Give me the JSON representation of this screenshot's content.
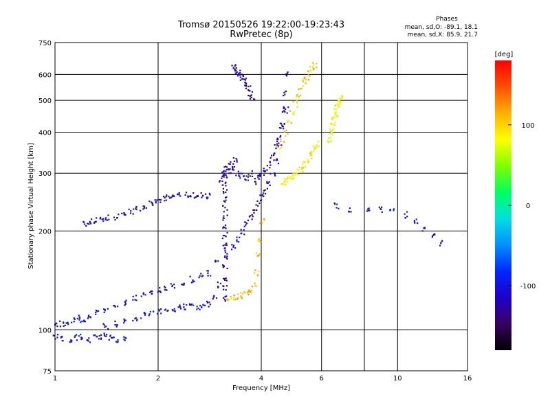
{
  "chart_data": {
    "type": "scatter",
    "title": "Tromsø 20150526 19:22:00-19:23:43",
    "subtitle": "RwPretec (8p)",
    "xlabel": "Frequency [MHz]",
    "ylabel": "Stationary phase Virtual Height [km]",
    "x_scale": "log",
    "y_scale": "log",
    "xlim": [
      1,
      16
    ],
    "ylim": [
      75,
      750
    ],
    "x_ticks": [
      "1",
      "2",
      "4",
      "6",
      "10",
      "16"
    ],
    "y_ticks": [
      "750",
      "600",
      "500",
      "400",
      "300",
      "200",
      "100",
      "75"
    ],
    "x_grid": [
      1,
      2,
      4,
      6,
      8,
      10,
      16
    ],
    "y_grid": [
      75,
      100,
      200,
      300,
      400,
      500,
      600,
      750
    ],
    "grid": true,
    "legend": {
      "position": "top-right",
      "title": "Phases",
      "lines": [
        "mean, sd,O: -89.1, 18.1",
        "mean, sd,X: 85.9, 21.7"
      ]
    },
    "colorbar": {
      "label": "[deg]",
      "range": [
        -180,
        180
      ],
      "ticks": [
        {
          "value": 100,
          "label": "100"
        },
        {
          "value": 0,
          "label": "0"
        },
        {
          "value": -100,
          "label": "-100"
        }
      ],
      "colors": [
        "#000000",
        "#3a0060",
        "#1e00c8",
        "#0028ff",
        "#0090ff",
        "#00e0e0",
        "#00ff60",
        "#80ff00",
        "#ffff00",
        "#ffb000",
        "#ff5000",
        "#ff0000"
      ]
    },
    "series": [
      {
        "x": [
          1.22,
          1.26,
          1.3,
          1.36,
          1.42,
          1.5,
          1.58,
          1.66,
          1.74,
          1.82,
          1.9,
          1.98,
          2.05,
          2.12,
          2.2,
          2.3,
          2.4,
          2.5,
          2.6,
          2.7,
          2.8
        ],
        "y": [
          212,
          214,
          216,
          218,
          220,
          222,
          226,
          230,
          234,
          238,
          243,
          247,
          251,
          254,
          256,
          257,
          258,
          259,
          258,
          257,
          256
        ],
        "phase": -110
      },
      {
        "x": [
          1.0,
          1.04,
          1.08,
          1.12,
          1.16,
          1.2,
          1.26,
          1.32,
          1.4,
          1.5,
          1.6,
          1.7,
          1.8,
          1.9,
          2.0,
          2.1,
          2.2,
          2.35,
          2.5,
          2.65,
          2.8,
          2.95
        ],
        "y": [
          103,
          105,
          104,
          107,
          109,
          108,
          111,
          113,
          116,
          119,
          122,
          126,
          129,
          131,
          133,
          135,
          137,
          140,
          143,
          146,
          149,
          160
        ],
        "phase": -105
      },
      {
        "x": [
          1.4,
          1.5,
          1.6,
          1.7,
          1.8,
          1.9,
          2.0,
          2.1,
          2.2,
          2.3,
          2.4,
          2.5,
          2.6,
          2.7,
          2.8,
          2.9,
          3.0
        ],
        "y": [
          103,
          105,
          107,
          109,
          111,
          113,
          114,
          115,
          116,
          117,
          118,
          119,
          118,
          118,
          120,
          126,
          138
        ],
        "phase": -100
      },
      {
        "x": [
          1.0,
          1.05,
          1.1,
          1.15,
          1.2,
          1.25,
          1.3,
          1.35,
          1.4,
          1.45,
          1.5,
          1.6
        ],
        "y": [
          96,
          95,
          94,
          95,
          96,
          94,
          95,
          96,
          97,
          95,
          94,
          95
        ],
        "phase": -100
      },
      {
        "x": [
          3.12,
          3.12,
          3.12,
          3.12,
          3.12,
          3.12,
          3.12,
          3.12,
          3.12,
          3.12,
          3.12,
          3.12,
          3.12,
          3.12,
          3.12
        ],
        "y": [
          125,
          135,
          145,
          155,
          165,
          175,
          185,
          195,
          205,
          220,
          235,
          250,
          265,
          280,
          295
        ],
        "phase": -120
      },
      {
        "x": [
          3.05,
          3.1,
          3.15,
          3.2,
          3.25,
          3.3,
          3.35,
          3.4,
          3.5,
          3.6,
          3.7,
          3.8,
          3.9,
          4.0,
          4.1,
          4.2,
          4.3,
          4.4,
          4.5,
          4.6,
          4.7
        ],
        "y": [
          290,
          300,
          310,
          305,
          320,
          315,
          330,
          300,
          295,
          290,
          300,
          285,
          295,
          300,
          310,
          320,
          340,
          360,
          390,
          420,
          470
        ],
        "phase": -115
      },
      {
        "x": [
          3.3,
          3.35,
          3.4,
          3.45,
          3.5,
          3.55,
          3.6,
          3.65,
          3.7,
          3.75
        ],
        "y": [
          640,
          625,
          610,
          600,
          590,
          575,
          560,
          545,
          530,
          515
        ],
        "phase": -120
      },
      {
        "x": [
          3.3,
          3.4,
          3.5,
          3.6,
          3.7,
          3.8,
          3.9,
          4.0,
          4.1,
          4.2,
          4.3,
          4.4,
          4.5,
          4.55,
          4.6,
          4.65,
          4.7
        ],
        "y": [
          180,
          190,
          200,
          210,
          220,
          230,
          245,
          255,
          265,
          280,
          300,
          330,
          370,
          420,
          470,
          530,
          600
        ],
        "phase": -110
      },
      {
        "x": [
          3.2,
          3.3,
          3.4,
          3.5,
          3.6,
          3.7,
          3.8,
          3.85,
          3.9,
          3.95,
          4.0
        ],
        "y": [
          125,
          126,
          127,
          128,
          130,
          133,
          138,
          150,
          170,
          190,
          215
        ],
        "phase": 110
      },
      {
        "x": [
          4.5,
          4.6,
          4.7,
          4.8,
          4.9,
          5.0,
          5.1,
          5.2,
          5.3,
          5.4,
          5.5,
          5.6,
          5.7
        ],
        "y": [
          360,
          380,
          400,
          430,
          460,
          490,
          520,
          550,
          570,
          590,
          610,
          630,
          640
        ],
        "phase": 105
      },
      {
        "x": [
          4.6,
          4.7,
          4.8,
          4.9,
          5.0,
          5.1,
          5.2,
          5.3,
          5.4,
          5.5,
          5.6,
          5.7,
          5.8
        ],
        "y": [
          280,
          285,
          290,
          295,
          300,
          305,
          310,
          320,
          330,
          340,
          350,
          360,
          370
        ],
        "phase": 90
      },
      {
        "x": [
          6.3,
          6.35,
          6.4,
          6.45,
          6.5,
          6.55,
          6.6,
          6.65,
          6.7,
          6.75,
          6.8
        ],
        "y": [
          380,
          395,
          410,
          425,
          440,
          455,
          470,
          480,
          490,
          500,
          510
        ],
        "phase": 75
      },
      {
        "x": [
          6.6,
          7.2,
          8.2,
          8.9,
          9.6,
          10.5,
          11.2,
          11.9,
          12.6,
          13.3
        ],
        "y": [
          240,
          235,
          234,
          233,
          230,
          225,
          215,
          205,
          195,
          185
        ],
        "phase": -100
      }
    ]
  }
}
